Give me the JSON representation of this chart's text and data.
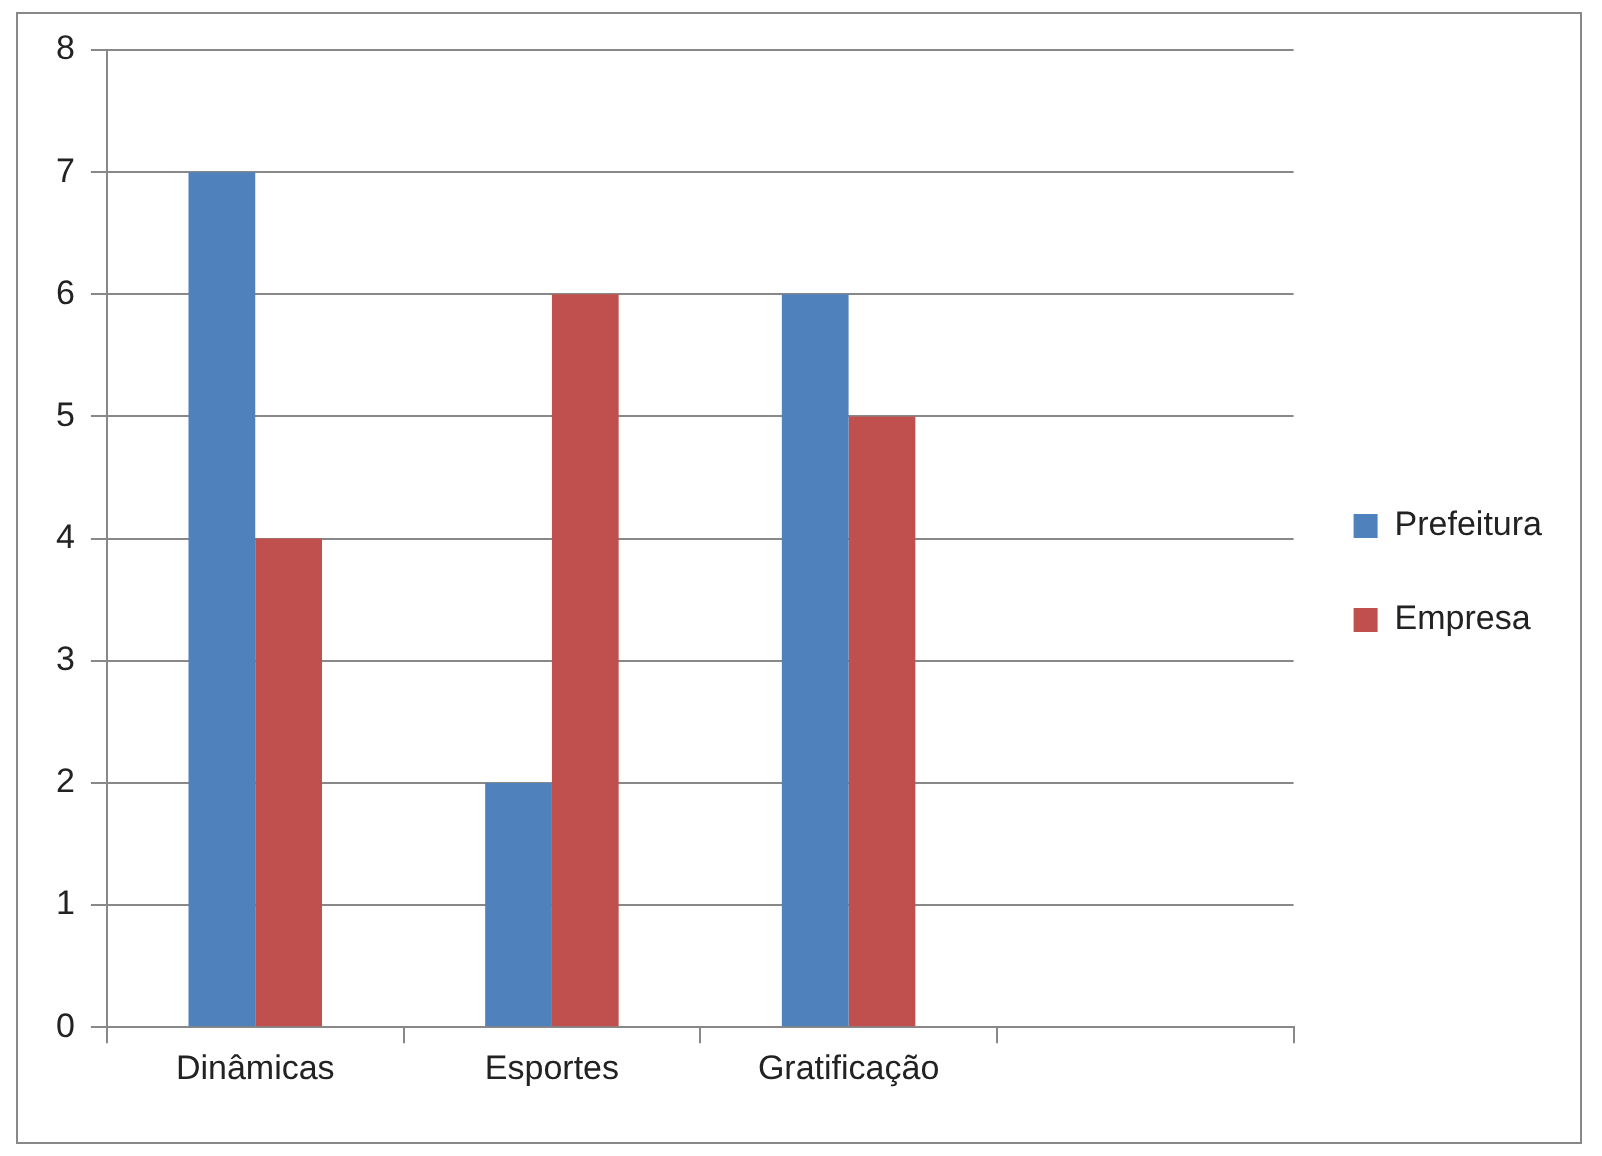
{
  "chart_data": {
    "type": "bar",
    "categories": [
      "Dinâmicas",
      "Esportes",
      "Gratificação",
      null
    ],
    "series": [
      {
        "name": "Prefeitura",
        "color": "#4f81bd",
        "values": [
          7,
          2,
          6,
          null
        ]
      },
      {
        "name": "Empresa",
        "color": "#c0504d",
        "values": [
          4,
          6,
          5,
          null
        ]
      }
    ],
    "ylim": [
      0,
      8
    ],
    "yticks": [
      0,
      1,
      2,
      3,
      4,
      5,
      6,
      7,
      8
    ],
    "grid": "y",
    "legend": "right"
  }
}
